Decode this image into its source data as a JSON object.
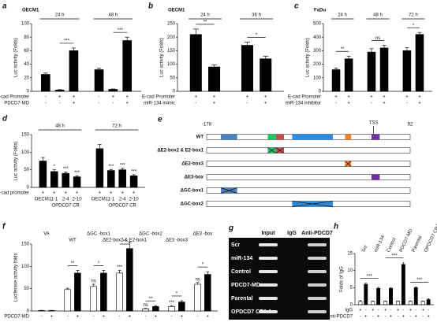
{
  "chart_data": [
    {
      "panel": "a",
      "type": "bar",
      "title": "OECM1",
      "ylabel": "Luc activity (Folds)",
      "ylim": [
        0,
        100
      ],
      "yticks": [
        0,
        20,
        40,
        60,
        80,
        100
      ],
      "colors": [
        "#000000"
      ],
      "row_labels": [
        "E-cad Promoter",
        "PDCD7-MD"
      ],
      "groups": [
        {
          "label": "24 h",
          "values": [
            25,
            2,
            60
          ],
          "errors": [
            2,
            0.5,
            4
          ],
          "signs": [
            [
              "-",
              "+",
              "+"
            ],
            [
              "-",
              "-",
              "+"
            ]
          ],
          "sig": "***"
        },
        {
          "label": "48 h",
          "values": [
            32,
            3,
            75
          ],
          "errors": [
            2,
            0.5,
            5
          ],
          "signs": [
            [
              "-",
              "+",
              "+"
            ],
            [
              "-",
              "-",
              "+"
            ]
          ],
          "sig": "***"
        }
      ]
    },
    {
      "panel": "b",
      "type": "bar",
      "title": "OECM1",
      "ylabel": "Luc activity (Folds)",
      "ylim": [
        0,
        250
      ],
      "yticks": [
        0,
        50,
        100,
        150,
        200,
        250
      ],
      "colors": [
        "#000000"
      ],
      "row_labels": [
        "E-cad Promoter",
        "miR-134 mimic"
      ],
      "groups": [
        {
          "label": "24 h",
          "values": [
            210,
            90
          ],
          "errors": [
            20,
            8
          ],
          "signs": [
            [
              "+",
              "+"
            ],
            [
              "-",
              "+"
            ]
          ],
          "sig": "**"
        },
        {
          "label": "36 h",
          "values": [
            170,
            120
          ],
          "errors": [
            12,
            10
          ],
          "signs": [
            [
              "+",
              "+"
            ],
            [
              "-",
              "+"
            ]
          ],
          "sig": "*"
        }
      ]
    },
    {
      "panel": "c",
      "type": "bar",
      "title": "FaDu",
      "ylabel": "Luc activity (Folds)",
      "ylim": [
        0,
        500
      ],
      "yticks": [
        0,
        100,
        200,
        300,
        400,
        500
      ],
      "colors": [
        "#000000"
      ],
      "row_labels": [
        "E-cad Promoter",
        "miR-134 inhibitor"
      ],
      "groups": [
        {
          "label": "24 h",
          "values": [
            160,
            240
          ],
          "errors": [
            12,
            20
          ],
          "signs": [
            [
              "+",
              "+"
            ],
            [
              "-",
              "+"
            ]
          ],
          "sig": "**"
        },
        {
          "label": "48 h",
          "values": [
            290,
            320
          ],
          "errors": [
            25,
            20
          ],
          "signs": [
            [
              "+",
              "+"
            ],
            [
              "-",
              "+"
            ]
          ],
          "sig": "ns"
        },
        {
          "label": "72 h",
          "values": [
            300,
            420
          ],
          "errors": [
            22,
            15
          ],
          "signs": [
            [
              "+",
              "+"
            ],
            [
              "-",
              "+"
            ]
          ],
          "sig": "*"
        }
      ]
    },
    {
      "panel": "d",
      "type": "bar",
      "ylabel": "Luc activity (Folds)",
      "ylim": [
        0,
        150
      ],
      "yticks": [
        0,
        50,
        100,
        150
      ],
      "colors": [
        "#000000"
      ],
      "row_labels": [
        "E-cad promoter"
      ],
      "groups": [
        {
          "label": "48 h",
          "values": [
            75,
            45,
            40,
            30
          ],
          "errors": [
            10,
            5,
            4,
            3
          ],
          "signs": [
            [
              "+",
              "+",
              "+",
              "+"
            ]
          ],
          "notes": [
            null,
            "*",
            "***",
            "***"
          ],
          "bar_labels": [
            "OECM1",
            "1-1",
            "2-4",
            "2-10"
          ],
          "sublabel": "OPDCD7 CR"
        },
        {
          "label": "72 h",
          "values": [
            110,
            48,
            50,
            33
          ],
          "errors": [
            12,
            3,
            4,
            3
          ],
          "signs": [
            [
              "+",
              "+",
              "+",
              "+"
            ]
          ],
          "notes": [
            null,
            "***",
            "***",
            "***"
          ],
          "bar_labels": [
            "OECM1",
            "1-1",
            "2-4",
            "2-10"
          ],
          "sublabel": "OPDCD7 CR"
        }
      ]
    },
    {
      "panel": "f",
      "type": "bar",
      "ylabel": "Luciferase activity folds",
      "ylim": [
        0,
        150
      ],
      "yticks": [
        0,
        50,
        100,
        150
      ],
      "colors": [
        "#ffffff",
        "#000000"
      ],
      "row_labels": [
        "PDCD7-MD"
      ],
      "groups": [
        {
          "label": "VA",
          "values": [
            1,
            1
          ],
          "errors": [
            0.5,
            0.5
          ],
          "signs": [
            [
              "-",
              "+"
            ]
          ]
        },
        {
          "label": "WT",
          "values": [
            48,
            85
          ],
          "errors": [
            3,
            6
          ],
          "signs": [
            [
              "-",
              "+"
            ]
          ],
          "sig": "**"
        },
        {
          "label": "ΔGC -box1",
          "values": [
            55,
            85
          ],
          "errors": [
            5,
            6
          ],
          "signs": [
            [
              "-",
              "+"
            ]
          ],
          "notes": [
            "ns",
            null
          ],
          "sig": "*"
        },
        {
          "label": "ΔE2-box2 & E2-box1",
          "values": [
            85,
            140
          ],
          "errors": [
            6,
            15
          ],
          "signs": [
            [
              "-",
              "+"
            ]
          ],
          "notes": [
            "***",
            null
          ],
          "sig": "**"
        },
        {
          "label": "ΔGC -box2",
          "values": [
            5,
            10
          ],
          "errors": [
            1,
            2
          ],
          "signs": [
            [
              "-",
              "+"
            ]
          ],
          "notes": [
            "ns",
            null
          ],
          "sig": "**"
        },
        {
          "label": "ΔE3 -box3",
          "values": [
            10,
            20
          ],
          "errors": [
            2,
            3
          ],
          "signs": [
            [
              "-",
              "+"
            ]
          ],
          "notes": [
            "***",
            null
          ],
          "sig": "*"
        },
        {
          "label": "ΔE3 -box",
          "values": [
            60,
            82
          ],
          "errors": [
            4,
            6
          ],
          "signs": [
            [
              "-",
              "+"
            ]
          ],
          "notes": [
            "ns",
            null
          ],
          "sig": "*"
        }
      ]
    },
    {
      "panel": "h",
      "type": "bar",
      "ylabel": "Folds of IgG",
      "ylim": [
        0,
        15
      ],
      "yticks": [
        0,
        5,
        10,
        15
      ],
      "colors": [
        "#ffffff",
        "#000000"
      ],
      "row_labels": [
        "IgG",
        "Anti-PDCD7"
      ],
      "pair_sigs": [
        "***",
        "***",
        "***"
      ],
      "groups": [
        {
          "label": "Scr",
          "values": [
            1,
            6
          ],
          "errors": [
            0.2,
            0.3
          ],
          "signs": [
            [
              "+",
              "-"
            ],
            [
              "-",
              "+"
            ]
          ]
        },
        {
          "label": "miR-134",
          "values": [
            1,
            4.8
          ],
          "errors": [
            0.1,
            0.3
          ],
          "signs": [
            [
              "+",
              "-"
            ],
            [
              "-",
              "+"
            ]
          ]
        },
        {
          "label": "Control",
          "values": [
            1,
            4.8
          ],
          "errors": [
            0.1,
            0.2
          ],
          "signs": [
            [
              "+",
              "-"
            ],
            [
              "-",
              "+"
            ]
          ]
        },
        {
          "label": "PDCD7-MD",
          "values": [
            1,
            11.8
          ],
          "errors": [
            0.1,
            0.5
          ],
          "signs": [
            [
              "+",
              "-"
            ],
            [
              "-",
              "+"
            ]
          ]
        },
        {
          "label": "Parental",
          "values": [
            1,
            5
          ],
          "errors": [
            0.1,
            0.2
          ],
          "signs": [
            [
              "+",
              "-"
            ],
            [
              "-",
              "+"
            ]
          ]
        },
        {
          "label": "OPDCD7 CR1-1",
          "values": [
            1,
            1.5
          ],
          "errors": [
            0.1,
            0.2
          ],
          "signs": [
            [
              "+",
              "-"
            ],
            [
              "-",
              "+"
            ]
          ]
        }
      ]
    }
  ],
  "diagram": {
    "panel": "e",
    "start": "-178",
    "end": "92",
    "tss": "TSS",
    "rows": [
      "WT",
      "ΔE2-box2 & E2-box1",
      "ΔE2-box3",
      "ΔE3-box",
      "ΔGC-box1",
      "ΔGC-box2"
    ]
  },
  "gel": {
    "panel": "g",
    "columns": [
      "Input",
      "IgG",
      "Anti-PDCD7"
    ],
    "rows": [
      "Scr",
      "miR-134",
      "Control",
      "PDCD7-MD",
      "Parental",
      "OPDCD7 CR1-1"
    ]
  }
}
